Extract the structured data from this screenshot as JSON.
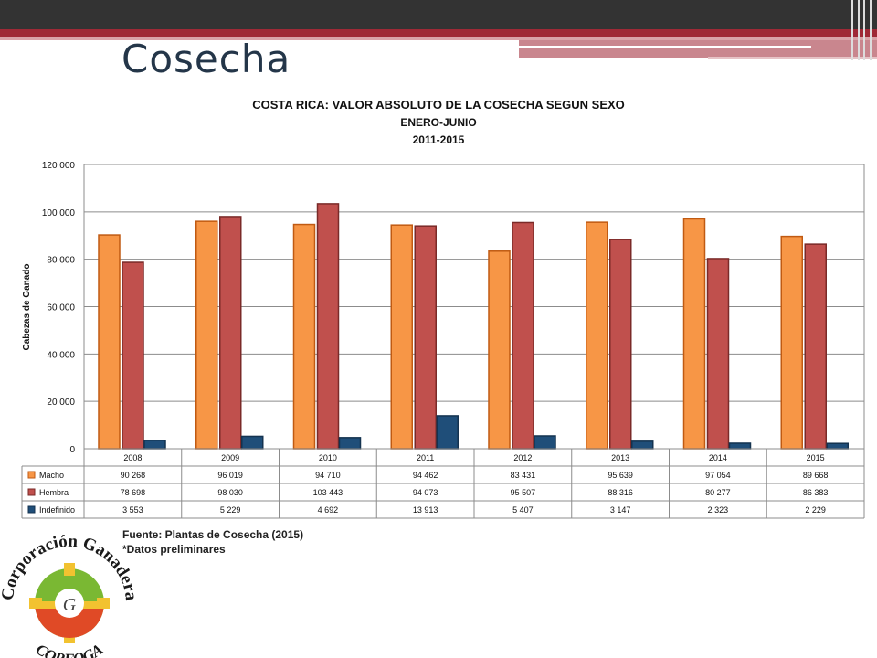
{
  "slide": {
    "title": "Cosecha",
    "source_line1": "Fuente: Plantas de Cosecha (2015)",
    "source_line2": "*Datos preliminares"
  },
  "logo": {
    "text_top": "Corporación Ganadera",
    "text_bottom": "CORFOGA"
  },
  "colors": {
    "macho": "#f79646",
    "hembra": "#c0504d",
    "indefinido": "#1f4e79",
    "header_dark": "#333333",
    "accent_red": "#9f2936",
    "title_blue": "#243649"
  },
  "chart_data": {
    "type": "bar",
    "title": "COSTA RICA: VALOR ABSOLUTO DE LA COSECHA SEGUN SEXO",
    "subtitle": "ENERO-JUNIO",
    "subtitle2": "2011-2015",
    "ylabel": "Cabezas de Ganado",
    "xlabel": "",
    "ylim": [
      0,
      120000
    ],
    "yticks": [
      0,
      20000,
      40000,
      60000,
      80000,
      100000,
      120000
    ],
    "ytick_labels": [
      "0",
      "20 000",
      "40 000",
      "60 000",
      "80 000",
      "100 000",
      "120 000"
    ],
    "grid": true,
    "legend": "data-table",
    "categories": [
      "2008",
      "2009",
      "2010",
      "2011",
      "2012",
      "2013",
      "2014",
      "2015"
    ],
    "series": [
      {
        "name": "Macho",
        "values": [
          90268,
          96019,
          94710,
          94462,
          83431,
          95639,
          97054,
          89668
        ],
        "labels": [
          "90 268",
          "96 019",
          "94 710",
          "94 462",
          "83 431",
          "95 639",
          "97 054",
          "89 668"
        ]
      },
      {
        "name": "Hembra",
        "values": [
          78698,
          98030,
          103443,
          94073,
          95507,
          88316,
          80277,
          86383
        ],
        "labels": [
          "78 698",
          "98 030",
          "103 443",
          "94 073",
          "95 507",
          "88 316",
          "80 277",
          "86 383"
        ]
      },
      {
        "name": "Indefinido",
        "values": [
          3553,
          5229,
          4692,
          13913,
          5407,
          3147,
          2323,
          2229
        ],
        "labels": [
          "3 553",
          "5 229",
          "4 692",
          "13 913",
          "5 407",
          "3 147",
          "2 323",
          "2 229"
        ]
      }
    ]
  }
}
